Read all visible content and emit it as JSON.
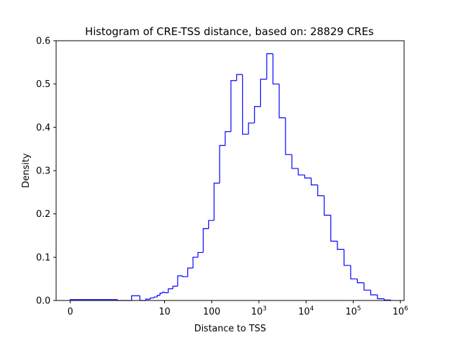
{
  "chart_data": {
    "type": "histogram",
    "title": "Histogram of CRE-TSS distance, based on: 28829 CREs",
    "xlabel": "Distance to TSS",
    "ylabel": "Density",
    "x_scale": "symlog",
    "xlim": [
      -0.3,
      1200000
    ],
    "ylim": [
      0,
      0.6
    ],
    "grid": false,
    "series_color": "#0000ff",
    "x_ticks": [
      {
        "value": 0,
        "base": "0",
        "exp": ""
      },
      {
        "value": 10,
        "base": "10",
        "exp": ""
      },
      {
        "value": 100,
        "base": "100",
        "exp": ""
      },
      {
        "value": 1000,
        "base": "10",
        "exp": "3"
      },
      {
        "value": 10000,
        "base": "10",
        "exp": "4"
      },
      {
        "value": 100000,
        "base": "10",
        "exp": "5"
      },
      {
        "value": 1000000,
        "base": "10",
        "exp": "6"
      }
    ],
    "y_ticks": [
      "0.0",
      "0.1",
      "0.2",
      "0.3",
      "0.4",
      "0.5",
      "0.6"
    ],
    "bin_edges": [
      0,
      1,
      2,
      3,
      4,
      5,
      6,
      7,
      8,
      9,
      10,
      12,
      15,
      19,
      24,
      31,
      40,
      51,
      66,
      86,
      112,
      147,
      193,
      255,
      338,
      450,
      601,
      806,
      1085,
      1466,
      1985,
      2696,
      3670,
      5005,
      6839,
      9367,
      12850,
      17654,
      24298,
      33492,
      46223,
      63882,
      88392,
      122405,
      169710,
      235460,
      326972,
      454270,
      631800
    ],
    "densities": [
      0.002,
      0.0,
      0.011,
      0.0,
      0.003,
      0.006,
      0.008,
      0.012,
      0.017,
      0.019,
      0.018,
      0.027,
      0.033,
      0.057,
      0.055,
      0.075,
      0.1,
      0.111,
      0.166,
      0.185,
      0.271,
      0.358,
      0.39,
      0.508,
      0.522,
      0.384,
      0.41,
      0.448,
      0.511,
      0.57,
      0.5,
      0.422,
      0.337,
      0.305,
      0.29,
      0.283,
      0.267,
      0.242,
      0.197,
      0.137,
      0.118,
      0.081,
      0.05,
      0.041,
      0.024,
      0.013,
      0.004,
      0.001
    ]
  }
}
